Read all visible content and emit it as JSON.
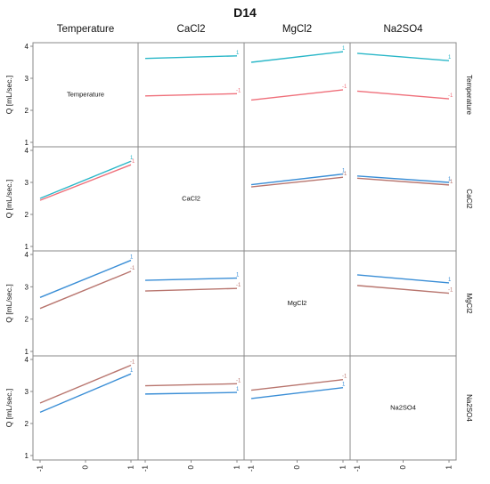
{
  "chart_data": {
    "type": "line",
    "title": "D14",
    "factors": [
      "Temperature",
      "CaCl2",
      "MgCl2",
      "Na2SO4"
    ],
    "ylabel": "Q [mL/sec.]",
    "ylim": [
      1,
      4
    ],
    "yticks": [
      1,
      2,
      3,
      4
    ],
    "xticks": [
      -1,
      0,
      1
    ],
    "xtick_labels": [
      "-1",
      "0",
      "1"
    ],
    "series_end_labels": [
      "1",
      "-1"
    ],
    "grid": false,
    "colors": {
      "cyan": "#2ab7c8",
      "pink": "#ef6f7a",
      "blue": "#3a8ed6",
      "brown": "#b8756e",
      "frame": "#888888",
      "text": "#111111"
    },
    "cells": [
      {
        "row": 0,
        "col": 1,
        "lines": [
          {
            "level": "1",
            "color": "cyan",
            "y": [
              3.62,
              3.7
            ]
          },
          {
            "level": "-1",
            "color": "pink",
            "y": [
              2.45,
              2.52
            ]
          }
        ]
      },
      {
        "row": 0,
        "col": 2,
        "lines": [
          {
            "level": "1",
            "color": "cyan",
            "y": [
              3.5,
              3.83
            ]
          },
          {
            "level": "-1",
            "color": "pink",
            "y": [
              2.32,
              2.64
            ]
          }
        ]
      },
      {
        "row": 0,
        "col": 3,
        "lines": [
          {
            "level": "1",
            "color": "cyan",
            "y": [
              3.78,
              3.55
            ]
          },
          {
            "level": "-1",
            "color": "pink",
            "y": [
              2.6,
              2.36
            ]
          }
        ]
      },
      {
        "row": 1,
        "col": 0,
        "lines": [
          {
            "level": "1",
            "color": "cyan",
            "y": [
              2.5,
              3.66
            ]
          },
          {
            "level": "-1",
            "color": "pink",
            "y": [
              2.44,
              3.55
            ]
          }
        ]
      },
      {
        "row": 1,
        "col": 2,
        "lines": [
          {
            "level": "1",
            "color": "blue",
            "y": [
              2.93,
              3.26
            ]
          },
          {
            "level": "-1",
            "color": "brown",
            "y": [
              2.86,
              3.16
            ]
          }
        ]
      },
      {
        "row": 1,
        "col": 3,
        "lines": [
          {
            "level": "1",
            "color": "blue",
            "y": [
              3.2,
              3.0
            ]
          },
          {
            "level": "-1",
            "color": "brown",
            "y": [
              3.13,
              2.92
            ]
          }
        ]
      },
      {
        "row": 2,
        "col": 0,
        "lines": [
          {
            "level": "1",
            "color": "blue",
            "y": [
              2.67,
              3.82
            ]
          },
          {
            "level": "-1",
            "color": "brown",
            "y": [
              2.33,
              3.48
            ]
          }
        ]
      },
      {
        "row": 2,
        "col": 1,
        "lines": [
          {
            "level": "1",
            "color": "blue",
            "y": [
              3.2,
              3.27
            ]
          },
          {
            "level": "-1",
            "color": "brown",
            "y": [
              2.87,
              2.95
            ]
          }
        ]
      },
      {
        "row": 2,
        "col": 3,
        "lines": [
          {
            "level": "1",
            "color": "blue",
            "y": [
              3.37,
              3.12
            ]
          },
          {
            "level": "-1",
            "color": "brown",
            "y": [
              3.04,
              2.8
            ]
          }
        ]
      },
      {
        "row": 3,
        "col": 0,
        "lines": [
          {
            "level": "1",
            "color": "blue",
            "y": [
              2.35,
              3.55
            ]
          },
          {
            "level": "-1",
            "color": "brown",
            "y": [
              2.64,
              3.82
            ]
          }
        ]
      },
      {
        "row": 3,
        "col": 1,
        "lines": [
          {
            "level": "1",
            "color": "blue",
            "y": [
              2.92,
              2.97
            ]
          },
          {
            "level": "-1",
            "color": "brown",
            "y": [
              3.18,
              3.24
            ]
          }
        ]
      },
      {
        "row": 3,
        "col": 2,
        "lines": [
          {
            "level": "1",
            "color": "blue",
            "y": [
              2.78,
              3.12
            ]
          },
          {
            "level": "-1",
            "color": "brown",
            "y": [
              3.04,
              3.37
            ]
          }
        ]
      }
    ]
  }
}
